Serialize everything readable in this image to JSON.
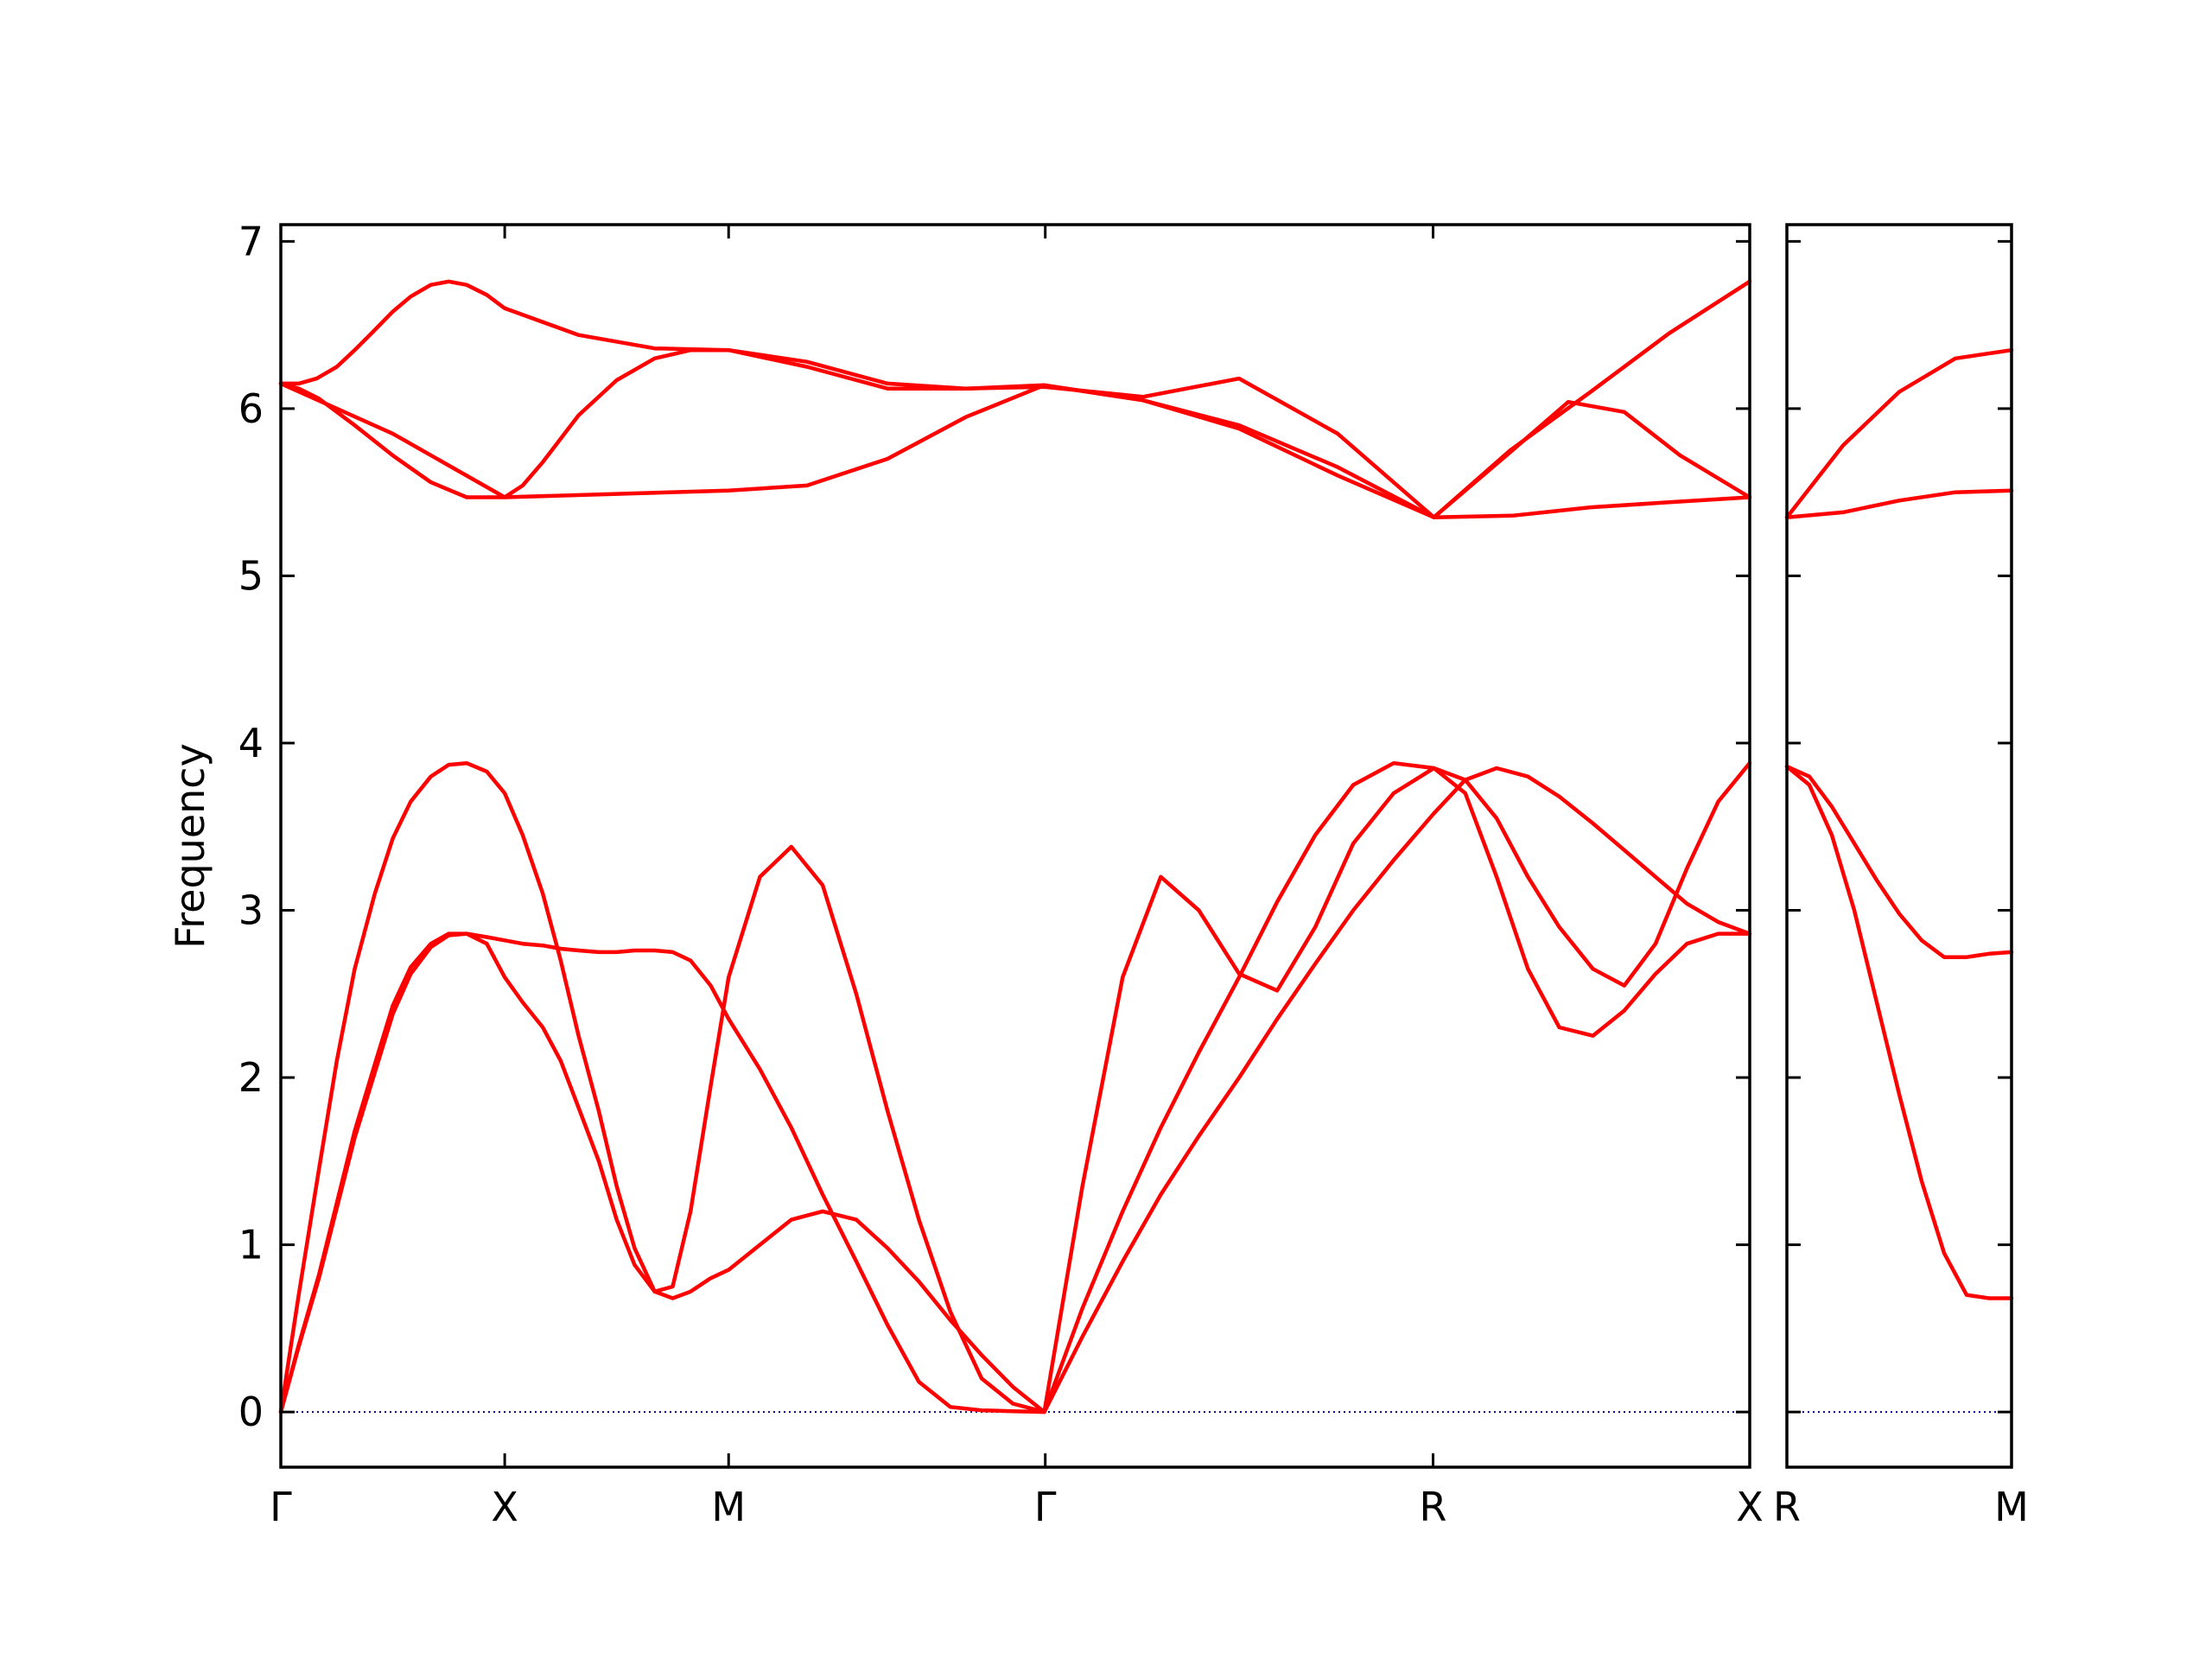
{
  "chart_data": {
    "type": "line",
    "ylabel": "Frequency",
    "ylim": [
      -0.33,
      7.1
    ],
    "yticks": [
      0,
      1,
      2,
      3,
      4,
      5,
      6,
      7
    ],
    "line_color": "#ff0000",
    "zero_line_color": "#00008b",
    "segments": [
      {
        "from": "Γ",
        "to": "X",
        "length": 1
      },
      {
        "from": "X",
        "to": "M",
        "length": 1
      },
      {
        "from": "M",
        "to": "Γ",
        "length": 1.4142
      },
      {
        "from": "Γ",
        "to": "R",
        "length": 1.7321
      },
      {
        "from": "R",
        "to": "X",
        "length": 1.4142
      },
      {
        "from": "R",
        "to": "M",
        "length": 1
      }
    ],
    "panels": [
      {
        "x_range": [
          0,
          6.5605
        ],
        "ticks": [
          {
            "x": 0,
            "label": "Γ"
          },
          {
            "x": 1,
            "label": "X"
          },
          {
            "x": 2,
            "label": "M"
          },
          {
            "x": 3.4142,
            "label": "Γ"
          },
          {
            "x": 5.1463,
            "label": "R"
          },
          {
            "x": 6.5605,
            "label": "X"
          }
        ]
      },
      {
        "x_range": [
          0,
          1
        ],
        "ticks": [
          {
            "x": 0,
            "label": "R"
          },
          {
            "x": 1,
            "label": "M"
          }
        ]
      }
    ],
    "series": [
      {
        "panel": 0,
        "x": [
          0,
          0.08,
          0.16,
          0.25,
          0.33,
          0.42,
          0.5,
          0.58,
          0.67,
          0.75,
          0.83,
          0.92,
          1,
          1.33,
          1.67,
          2,
          2.35,
          2.71,
          3.06,
          3.41,
          3.85,
          4.28,
          4.72,
          5.15,
          5.49,
          5.85,
          6.2,
          6.56
        ],
        "y": [
          6.15,
          6.15,
          6.18,
          6.25,
          6.35,
          6.47,
          6.58,
          6.67,
          6.74,
          6.76,
          6.74,
          6.68,
          6.6,
          6.44,
          6.36,
          6.35,
          6.28,
          6.15,
          6.12,
          6.13,
          6.07,
          6.18,
          5.85,
          5.35,
          5.75,
          6.1,
          6.45,
          6.76
        ]
      },
      {
        "panel": 0,
        "x": [
          0,
          0.08,
          0.17,
          0.33,
          0.5,
          0.67,
          0.83,
          0.92,
          1,
          1.08,
          1.17,
          1.33,
          1.5,
          1.67,
          1.83,
          2,
          2.35,
          2.71,
          3.06,
          3.41,
          3.85,
          4.28,
          4.72,
          5.15,
          5.5,
          5.75,
          6.0,
          6.25,
          6.56
        ],
        "y": [
          6.15,
          6.12,
          6.06,
          5.9,
          5.72,
          5.56,
          5.47,
          5.47,
          5.47,
          5.54,
          5.68,
          5.96,
          6.17,
          6.3,
          6.35,
          6.35,
          6.25,
          6.12,
          6.12,
          6.14,
          6.05,
          5.9,
          5.65,
          5.35,
          5.75,
          6.04,
          5.98,
          5.72,
          5.47
        ]
      },
      {
        "panel": 0,
        "x": [
          0,
          0.5,
          1,
          1.5,
          2,
          2.35,
          2.71,
          3.06,
          3.41,
          3.85,
          4.28,
          4.72,
          5.15,
          5.5,
          5.85,
          6.2,
          6.56
        ],
        "y": [
          6.15,
          5.85,
          5.47,
          5.49,
          5.51,
          5.54,
          5.7,
          5.95,
          6.14,
          6.05,
          5.88,
          5.6,
          5.35,
          5.36,
          5.41,
          5.44,
          5.47
        ]
      },
      {
        "panel": 0,
        "x": [
          0,
          0.08,
          0.17,
          0.25,
          0.33,
          0.42,
          0.5,
          0.58,
          0.67,
          0.75,
          0.83,
          0.92,
          1,
          1.08,
          1.17,
          1.25,
          1.33,
          1.42,
          1.5,
          1.58,
          1.67,
          1.75,
          1.83,
          1.92,
          2,
          2.14,
          2.28,
          2.42,
          2.57,
          2.71,
          2.85,
          2.99,
          3.13,
          3.27,
          3.41,
          3.58,
          3.76,
          3.93,
          4.1,
          4.28,
          4.45,
          4.62,
          4.79,
          4.97,
          5.15,
          5.29,
          5.43,
          5.57,
          5.71,
          5.86,
          6.0,
          6.14,
          6.28,
          6.42,
          6.56
        ],
        "y": [
          0,
          0.7,
          1.45,
          2.1,
          2.65,
          3.1,
          3.43,
          3.65,
          3.8,
          3.87,
          3.88,
          3.83,
          3.7,
          3.45,
          3.1,
          2.7,
          2.25,
          1.8,
          1.35,
          0.98,
          0.72,
          0.68,
          0.72,
          0.8,
          0.85,
          1.0,
          1.15,
          1.2,
          1.15,
          0.98,
          0.78,
          0.55,
          0.34,
          0.15,
          0,
          0.62,
          1.2,
          1.7,
          2.15,
          2.6,
          3.05,
          3.45,
          3.75,
          3.88,
          3.85,
          3.7,
          3.2,
          2.65,
          2.3,
          2.25,
          2.4,
          2.62,
          2.8,
          2.86,
          2.86
        ]
      },
      {
        "panel": 0,
        "x": [
          0,
          0.08,
          0.17,
          0.25,
          0.33,
          0.42,
          0.5,
          0.58,
          0.67,
          0.75,
          0.83,
          0.92,
          1,
          1.08,
          1.17,
          1.25,
          1.33,
          1.42,
          1.5,
          1.58,
          1.67,
          1.75,
          1.83,
          1.92,
          2,
          2.14,
          2.28,
          2.42,
          2.57,
          2.71,
          2.85,
          2.99,
          3.13,
          3.27,
          3.41,
          3.58,
          3.76,
          3.93,
          4.1,
          4.28,
          4.45,
          4.62,
          4.79,
          4.97,
          5.15,
          5.29,
          5.43,
          5.57,
          5.71,
          5.86,
          6.0,
          6.14,
          6.28,
          6.42,
          6.56
        ],
        "y": [
          0,
          0.4,
          0.82,
          1.25,
          1.68,
          2.08,
          2.43,
          2.66,
          2.8,
          2.86,
          2.86,
          2.84,
          2.82,
          2.8,
          2.79,
          2.77,
          2.76,
          2.75,
          2.75,
          2.76,
          2.76,
          2.75,
          2.7,
          2.55,
          2.35,
          2.05,
          1.7,
          1.3,
          0.9,
          0.52,
          0.18,
          0.03,
          0.01,
          0.005,
          0,
          0.45,
          0.9,
          1.3,
          1.65,
          2.0,
          2.35,
          2.68,
          3.0,
          3.3,
          3.58,
          3.78,
          3.85,
          3.8,
          3.68,
          3.52,
          3.36,
          3.2,
          3.04,
          2.93,
          2.86
        ]
      },
      {
        "panel": 0,
        "x": [
          0,
          0.08,
          0.17,
          0.25,
          0.33,
          0.42,
          0.5,
          0.58,
          0.67,
          0.75,
          0.83,
          0.92,
          1,
          1.08,
          1.17,
          1.25,
          1.33,
          1.42,
          1.5,
          1.58,
          1.67,
          1.75,
          1.83,
          1.92,
          2,
          2.14,
          2.28,
          2.42,
          2.57,
          2.71,
          2.85,
          2.99,
          3.13,
          3.27,
          3.41,
          3.58,
          3.76,
          3.93,
          4.1,
          4.28,
          4.45,
          4.62,
          4.79,
          4.97,
          5.15,
          5.29,
          5.43,
          5.57,
          5.71,
          5.86,
          6.0,
          6.14,
          6.28,
          6.42,
          6.56
        ],
        "y": [
          0,
          0.39,
          0.8,
          1.22,
          1.64,
          2.03,
          2.38,
          2.62,
          2.78,
          2.85,
          2.86,
          2.8,
          2.6,
          2.45,
          2.3,
          2.1,
          1.82,
          1.5,
          1.15,
          0.88,
          0.72,
          0.75,
          1.2,
          1.95,
          2.6,
          3.2,
          3.38,
          3.15,
          2.5,
          1.8,
          1.15,
          0.6,
          0.2,
          0.05,
          0,
          1.35,
          2.6,
          3.2,
          3.0,
          2.62,
          2.52,
          2.9,
          3.4,
          3.7,
          3.85,
          3.78,
          3.55,
          3.2,
          2.9,
          2.65,
          2.55,
          2.8,
          3.25,
          3.65,
          3.88
        ]
      },
      {
        "panel": 1,
        "x": [
          0,
          0.25,
          0.5,
          0.75,
          1
        ],
        "y": [
          5.35,
          5.78,
          6.1,
          6.3,
          6.35
        ]
      },
      {
        "panel": 1,
        "x": [
          0,
          0.25,
          0.5,
          0.75,
          1
        ],
        "y": [
          5.35,
          5.38,
          5.45,
          5.5,
          5.51
        ]
      },
      {
        "panel": 1,
        "x": [
          0,
          0.1,
          0.2,
          0.3,
          0.4,
          0.5,
          0.6,
          0.7,
          0.8,
          0.9,
          1
        ],
        "y": [
          3.86,
          3.8,
          3.62,
          3.4,
          3.18,
          2.98,
          2.82,
          2.72,
          2.72,
          2.74,
          2.75
        ]
      },
      {
        "panel": 1,
        "x": [
          0,
          0.1,
          0.2,
          0.3,
          0.4,
          0.5,
          0.6,
          0.7,
          0.8,
          0.9,
          1
        ],
        "y": [
          3.86,
          3.75,
          3.45,
          3.0,
          2.45,
          1.9,
          1.38,
          0.95,
          0.7,
          0.68,
          0.68
        ]
      }
    ]
  }
}
